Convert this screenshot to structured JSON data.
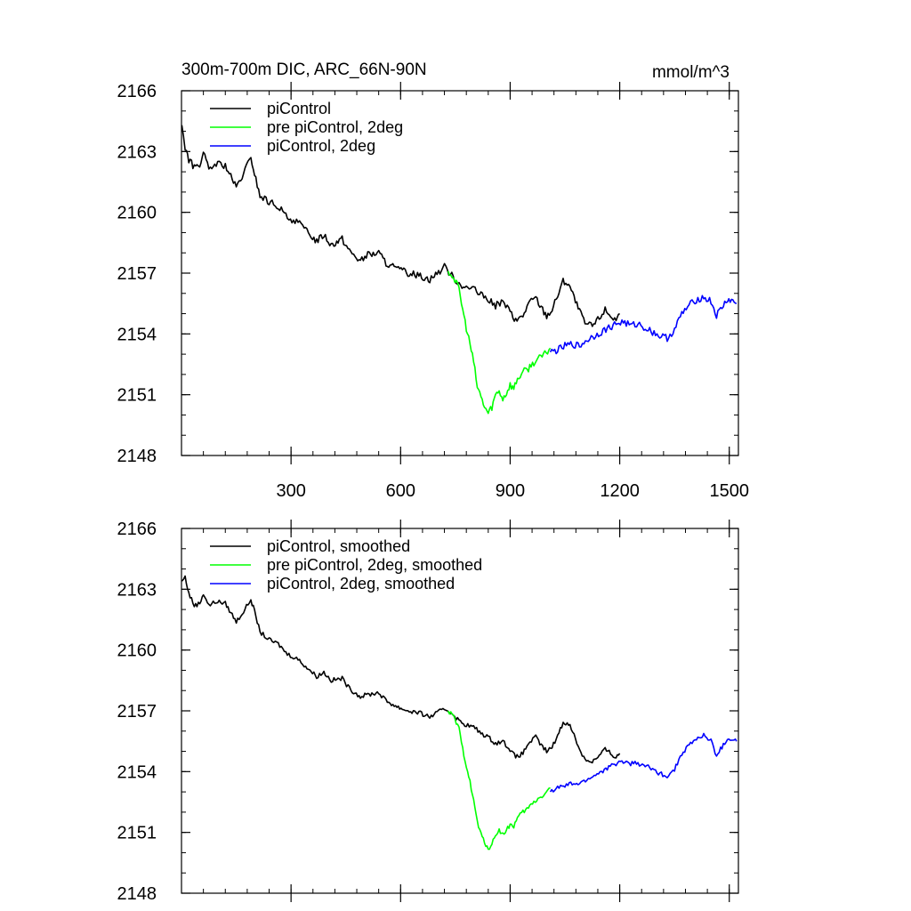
{
  "figure": {
    "title": "300m-700m DIC, ARC_66N-90N",
    "units": "mmol/m^3"
  },
  "chart_data": [
    {
      "type": "line",
      "panel": "top",
      "xlim": [
        0,
        1525
      ],
      "ylim": [
        2148,
        2166
      ],
      "x_ticks": [
        300,
        600,
        900,
        1200,
        1500
      ],
      "x_tick_labels": [
        "300",
        "600",
        "900",
        "1200",
        "1500"
      ],
      "y_ticks": [
        2148,
        2151,
        2154,
        2157,
        2160,
        2163,
        2166
      ],
      "y_tick_labels": [
        "2148",
        "2151",
        "2154",
        "2157",
        "2160",
        "2163",
        "2166"
      ],
      "legend_position": "top-left",
      "series": [
        {
          "name": "piControl",
          "color": "#000000",
          "points": [
            [
              1,
              2164.3
            ],
            [
              10,
              2163.2
            ],
            [
              20,
              2162.6
            ],
            [
              35,
              2162.2
            ],
            [
              50,
              2162.4
            ],
            [
              60,
              2162.9
            ],
            [
              75,
              2162.1
            ],
            [
              95,
              2162.4
            ],
            [
              120,
              2162.3
            ],
            [
              150,
              2161.2
            ],
            [
              170,
              2161.9
            ],
            [
              190,
              2162.7
            ],
            [
              200,
              2161.9
            ],
            [
              215,
              2160.8
            ],
            [
              240,
              2160.5
            ],
            [
              265,
              2160.3
            ],
            [
              290,
              2159.7
            ],
            [
              315,
              2159.6
            ],
            [
              340,
              2159.1
            ],
            [
              370,
              2158.6
            ],
            [
              390,
              2158.9
            ],
            [
              410,
              2158.4
            ],
            [
              440,
              2158.7
            ],
            [
              460,
              2158.1
            ],
            [
              490,
              2157.6
            ],
            [
              510,
              2157.9
            ],
            [
              540,
              2158.0
            ],
            [
              560,
              2157.5
            ],
            [
              590,
              2157.2
            ],
            [
              620,
              2157.0
            ],
            [
              650,
              2156.9
            ],
            [
              680,
              2156.7
            ],
            [
              700,
              2157.0
            ],
            [
              720,
              2157.3
            ],
            [
              740,
              2156.9
            ],
            [
              760,
              2156.5
            ],
            [
              780,
              2156.3
            ],
            [
              800,
              2156.2
            ],
            [
              820,
              2155.9
            ],
            [
              840,
              2155.7
            ],
            [
              860,
              2155.4
            ],
            [
              880,
              2155.6
            ],
            [
              900,
              2155.1
            ],
            [
              915,
              2154.6
            ],
            [
              935,
              2154.9
            ],
            [
              950,
              2155.5
            ],
            [
              970,
              2155.8
            ],
            [
              985,
              2155.3
            ],
            [
              1000,
              2154.9
            ],
            [
              1015,
              2155.2
            ],
            [
              1030,
              2155.9
            ],
            [
              1045,
              2156.6
            ],
            [
              1060,
              2156.5
            ],
            [
              1075,
              2155.8
            ],
            [
              1090,
              2155.1
            ],
            [
              1105,
              2154.5
            ],
            [
              1125,
              2154.4
            ],
            [
              1140,
              2154.7
            ],
            [
              1160,
              2155.2
            ],
            [
              1175,
              2154.9
            ],
            [
              1190,
              2154.7
            ],
            [
              1200,
              2155.0
            ]
          ]
        },
        {
          "name": "pre piControl, 2deg",
          "color": "#00ff00",
          "points": [
            [
              730,
              2157.1
            ],
            [
              745,
              2156.8
            ],
            [
              760,
              2156.2
            ],
            [
              770,
              2155.2
            ],
            [
              780,
              2154.3
            ],
            [
              790,
              2153.5
            ],
            [
              800,
              2152.6
            ],
            [
              810,
              2151.4
            ],
            [
              820,
              2150.9
            ],
            [
              830,
              2150.4
            ],
            [
              840,
              2150.1
            ],
            [
              850,
              2150.4
            ],
            [
              860,
              2151.0
            ],
            [
              870,
              2151.2
            ],
            [
              880,
              2150.8
            ],
            [
              890,
              2151.1
            ],
            [
              900,
              2151.5
            ],
            [
              910,
              2151.3
            ],
            [
              920,
              2151.8
            ],
            [
              935,
              2152.1
            ],
            [
              950,
              2152.3
            ],
            [
              965,
              2152.6
            ],
            [
              980,
              2152.8
            ],
            [
              995,
              2153.0
            ],
            [
              1010,
              2153.3
            ]
          ]
        },
        {
          "name": "piControl, 2deg",
          "color": "#0000ff",
          "points": [
            [
              1010,
              2153.1
            ],
            [
              1030,
              2153.2
            ],
            [
              1050,
              2153.4
            ],
            [
              1070,
              2153.5
            ],
            [
              1090,
              2153.4
            ],
            [
              1110,
              2153.7
            ],
            [
              1130,
              2153.9
            ],
            [
              1150,
              2154.1
            ],
            [
              1170,
              2154.3
            ],
            [
              1190,
              2154.5
            ],
            [
              1210,
              2154.6
            ],
            [
              1230,
              2154.4
            ],
            [
              1250,
              2154.5
            ],
            [
              1270,
              2154.3
            ],
            [
              1290,
              2154.1
            ],
            [
              1310,
              2153.9
            ],
            [
              1330,
              2153.8
            ],
            [
              1350,
              2154.2
            ],
            [
              1370,
              2155.0
            ],
            [
              1390,
              2155.4
            ],
            [
              1410,
              2155.7
            ],
            [
              1430,
              2155.8
            ],
            [
              1450,
              2155.6
            ],
            [
              1465,
              2154.9
            ],
            [
              1480,
              2155.3
            ],
            [
              1495,
              2155.7
            ],
            [
              1510,
              2155.6
            ],
            [
              1520,
              2155.5
            ]
          ]
        }
      ]
    },
    {
      "type": "line",
      "panel": "bottom",
      "xlim": [
        0,
        1525
      ],
      "ylim": [
        2148,
        2166
      ],
      "x_ticks": [
        300,
        600,
        900,
        1200,
        1500
      ],
      "x_tick_labels": [],
      "y_ticks": [
        2148,
        2151,
        2154,
        2157,
        2160,
        2163,
        2166
      ],
      "y_tick_labels": [
        "2148",
        "2151",
        "2154",
        "2157",
        "2160",
        "2163",
        "2166"
      ],
      "legend_position": "top-left",
      "series": [
        {
          "name": "piControl, smoothed",
          "color": "#000000",
          "points": [
            [
              1,
              2163.4
            ],
            [
              10,
              2163.6
            ],
            [
              20,
              2162.8
            ],
            [
              35,
              2162.2
            ],
            [
              50,
              2162.3
            ],
            [
              60,
              2162.8
            ],
            [
              75,
              2162.2
            ],
            [
              95,
              2162.4
            ],
            [
              120,
              2162.3
            ],
            [
              150,
              2161.4
            ],
            [
              170,
              2161.9
            ],
            [
              190,
              2162.5
            ],
            [
              200,
              2161.9
            ],
            [
              215,
              2160.9
            ],
            [
              240,
              2160.5
            ],
            [
              265,
              2160.3
            ],
            [
              290,
              2159.8
            ],
            [
              315,
              2159.6
            ],
            [
              340,
              2159.2
            ],
            [
              370,
              2158.7
            ],
            [
              390,
              2158.9
            ],
            [
              410,
              2158.5
            ],
            [
              440,
              2158.6
            ],
            [
              460,
              2158.1
            ],
            [
              490,
              2157.7
            ],
            [
              510,
              2157.8
            ],
            [
              540,
              2157.9
            ],
            [
              560,
              2157.5
            ],
            [
              590,
              2157.2
            ],
            [
              620,
              2157.0
            ],
            [
              650,
              2156.9
            ],
            [
              680,
              2156.7
            ],
            [
              700,
              2156.9
            ],
            [
              720,
              2157.1
            ],
            [
              740,
              2156.9
            ],
            [
              760,
              2156.5
            ],
            [
              780,
              2156.3
            ],
            [
              800,
              2156.2
            ],
            [
              820,
              2155.9
            ],
            [
              840,
              2155.7
            ],
            [
              860,
              2155.4
            ],
            [
              880,
              2155.5
            ],
            [
              900,
              2155.1
            ],
            [
              915,
              2154.7
            ],
            [
              935,
              2154.9
            ],
            [
              950,
              2155.4
            ],
            [
              970,
              2155.7
            ],
            [
              985,
              2155.3
            ],
            [
              1000,
              2155.0
            ],
            [
              1015,
              2155.2
            ],
            [
              1030,
              2155.8
            ],
            [
              1045,
              2156.4
            ],
            [
              1060,
              2156.4
            ],
            [
              1075,
              2155.8
            ],
            [
              1090,
              2155.1
            ],
            [
              1105,
              2154.6
            ],
            [
              1125,
              2154.5
            ],
            [
              1140,
              2154.7
            ],
            [
              1160,
              2155.1
            ],
            [
              1175,
              2154.9
            ],
            [
              1190,
              2154.7
            ],
            [
              1200,
              2154.9
            ]
          ]
        },
        {
          "name": "pre piControl, 2deg, smoothed",
          "color": "#00ff00",
          "points": [
            [
              730,
              2157.0
            ],
            [
              745,
              2156.7
            ],
            [
              760,
              2156.1
            ],
            [
              770,
              2155.1
            ],
            [
              780,
              2154.3
            ],
            [
              790,
              2153.5
            ],
            [
              800,
              2152.6
            ],
            [
              810,
              2151.5
            ],
            [
              820,
              2150.9
            ],
            [
              830,
              2150.5
            ],
            [
              840,
              2150.2
            ],
            [
              850,
              2150.4
            ],
            [
              860,
              2150.9
            ],
            [
              870,
              2151.1
            ],
            [
              880,
              2150.9
            ],
            [
              890,
              2151.1
            ],
            [
              900,
              2151.4
            ],
            [
              910,
              2151.3
            ],
            [
              920,
              2151.7
            ],
            [
              935,
              2152.0
            ],
            [
              950,
              2152.2
            ],
            [
              965,
              2152.5
            ],
            [
              980,
              2152.7
            ],
            [
              995,
              2152.9
            ],
            [
              1010,
              2153.2
            ]
          ]
        },
        {
          "name": "piControl, 2deg, smoothed",
          "color": "#0000ff",
          "points": [
            [
              1010,
              2153.0
            ],
            [
              1030,
              2153.2
            ],
            [
              1050,
              2153.3
            ],
            [
              1070,
              2153.4
            ],
            [
              1090,
              2153.4
            ],
            [
              1110,
              2153.6
            ],
            [
              1130,
              2153.8
            ],
            [
              1150,
              2154.0
            ],
            [
              1170,
              2154.2
            ],
            [
              1190,
              2154.4
            ],
            [
              1210,
              2154.5
            ],
            [
              1230,
              2154.4
            ],
            [
              1250,
              2154.4
            ],
            [
              1270,
              2154.3
            ],
            [
              1290,
              2154.1
            ],
            [
              1310,
              2153.9
            ],
            [
              1330,
              2153.8
            ],
            [
              1350,
              2154.1
            ],
            [
              1370,
              2154.9
            ],
            [
              1390,
              2155.3
            ],
            [
              1410,
              2155.6
            ],
            [
              1430,
              2155.8
            ],
            [
              1450,
              2155.5
            ],
            [
              1465,
              2154.8
            ],
            [
              1480,
              2155.2
            ],
            [
              1495,
              2155.6
            ],
            [
              1510,
              2155.6
            ],
            [
              1520,
              2155.5
            ]
          ]
        }
      ]
    }
  ]
}
